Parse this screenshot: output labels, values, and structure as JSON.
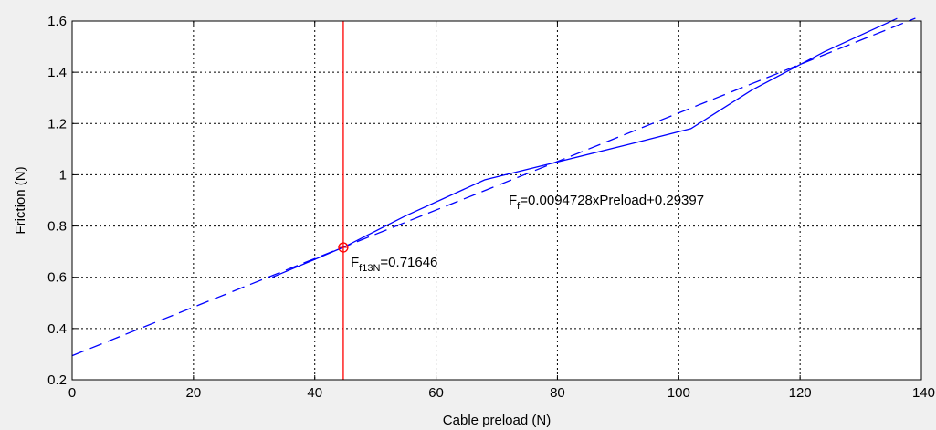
{
  "chart_data": {
    "type": "line",
    "xlabel": "Cable preload (N)",
    "ylabel": "Friction (N)",
    "xlim": [
      0,
      140
    ],
    "ylim": [
      0.2,
      1.6
    ],
    "x_ticks": [
      "0",
      "20",
      "40",
      "60",
      "80",
      "100",
      "120",
      "140"
    ],
    "y_ticks": [
      "0.2",
      "0.4",
      "0.6",
      "0.8",
      "1",
      "1.2",
      "1.4",
      "1.6"
    ],
    "grid": true,
    "series": [
      {
        "style": "solid",
        "color": "#0000ff",
        "x": [
          33,
          40,
          45,
          55,
          68,
          80,
          92,
          102,
          112,
          124,
          136
        ],
        "y": [
          0.6,
          0.67,
          0.72,
          0.84,
          0.98,
          1.05,
          1.12,
          1.18,
          1.33,
          1.48,
          1.61
        ]
      },
      {
        "style": "dashed",
        "color": "#0000ff",
        "x": [
          0,
          139
        ],
        "y": [
          0.29397,
          1.6108
        ]
      }
    ],
    "vertical_line": {
      "x": 44.7,
      "color": "#ff0000"
    },
    "marker": {
      "x": 44.7,
      "y": 0.71646,
      "color": "#ff0000"
    },
    "annotations": {
      "fit_main": "F",
      "fit_sub": "f",
      "fit_rest": "=0.0094728xPreload+0.29397",
      "point_main": "F",
      "point_sub": "f13N",
      "point_rest": "=0.71646"
    }
  }
}
